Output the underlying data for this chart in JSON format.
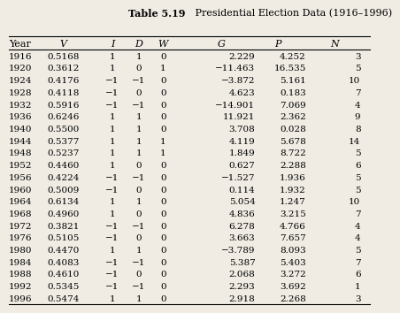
{
  "title_bold": "Table 5.19",
  "title_normal": "   Presidential Election Data (1916–1996)",
  "columns": [
    "Year",
    "V",
    "I",
    "D",
    "W",
    "G",
    "P",
    "N"
  ],
  "col_italic": [
    false,
    true,
    true,
    true,
    true,
    true,
    true,
    true
  ],
  "rows": [
    [
      "1916",
      "0.5168",
      "1",
      "1",
      "0",
      "2.229",
      "4.252",
      "3"
    ],
    [
      "1920",
      "0.3612",
      "1",
      "0",
      "1",
      "−11.463",
      "16.535",
      "5"
    ],
    [
      "1924",
      "0.4176",
      "−1",
      "−1",
      "0",
      "−3.872",
      "5.161",
      "10"
    ],
    [
      "1928",
      "0.4118",
      "−1",
      "0",
      "0",
      "4.623",
      "0.183",
      "7"
    ],
    [
      "1932",
      "0.5916",
      "−1",
      "−1",
      "0",
      "−14.901",
      "7.069",
      "4"
    ],
    [
      "1936",
      "0.6246",
      "1",
      "1",
      "0",
      "11.921",
      "2.362",
      "9"
    ],
    [
      "1940",
      "0.5500",
      "1",
      "1",
      "0",
      "3.708",
      "0.028",
      "8"
    ],
    [
      "1944",
      "0.5377",
      "1",
      "1",
      "1",
      "4.119",
      "5.678",
      "14"
    ],
    [
      "1948",
      "0.5237",
      "1",
      "1",
      "1",
      "1.849",
      "8.722",
      "5"
    ],
    [
      "1952",
      "0.4460",
      "1",
      "0",
      "0",
      "0.627",
      "2.288",
      "6"
    ],
    [
      "1956",
      "0.4224",
      "−1",
      "−1",
      "0",
      "−1.527",
      "1.936",
      "5"
    ],
    [
      "1960",
      "0.5009",
      "−1",
      "0",
      "0",
      "0.114",
      "1.932",
      "5"
    ],
    [
      "1964",
      "0.6134",
      "1",
      "1",
      "0",
      "5.054",
      "1.247",
      "10"
    ],
    [
      "1968",
      "0.4960",
      "1",
      "0",
      "0",
      "4.836",
      "3.215",
      "7"
    ],
    [
      "1972",
      "0.3821",
      "−1",
      "−1",
      "0",
      "6.278",
      "4.766",
      "4"
    ],
    [
      "1976",
      "0.5105",
      "−1",
      "0",
      "0",
      "3.663",
      "7.657",
      "4"
    ],
    [
      "1980",
      "0.4470",
      "1",
      "1",
      "0",
      "−3.789",
      "8.093",
      "5"
    ],
    [
      "1984",
      "0.4083",
      "−1",
      "−1",
      "0",
      "5.387",
      "5.403",
      "7"
    ],
    [
      "1988",
      "0.4610",
      "−1",
      "0",
      "0",
      "2.068",
      "3.272",
      "6"
    ],
    [
      "1992",
      "0.5345",
      "−1",
      "−1",
      "0",
      "2.293",
      "3.692",
      "1"
    ],
    [
      "1996",
      "0.5474",
      "1",
      "1",
      "0",
      "2.918",
      "2.268",
      "3"
    ]
  ],
  "bg_color": "#f0ece4",
  "text_color": "#000000",
  "title_fontsize": 8.0,
  "header_fontsize": 8.0,
  "data_fontsize": 7.5
}
